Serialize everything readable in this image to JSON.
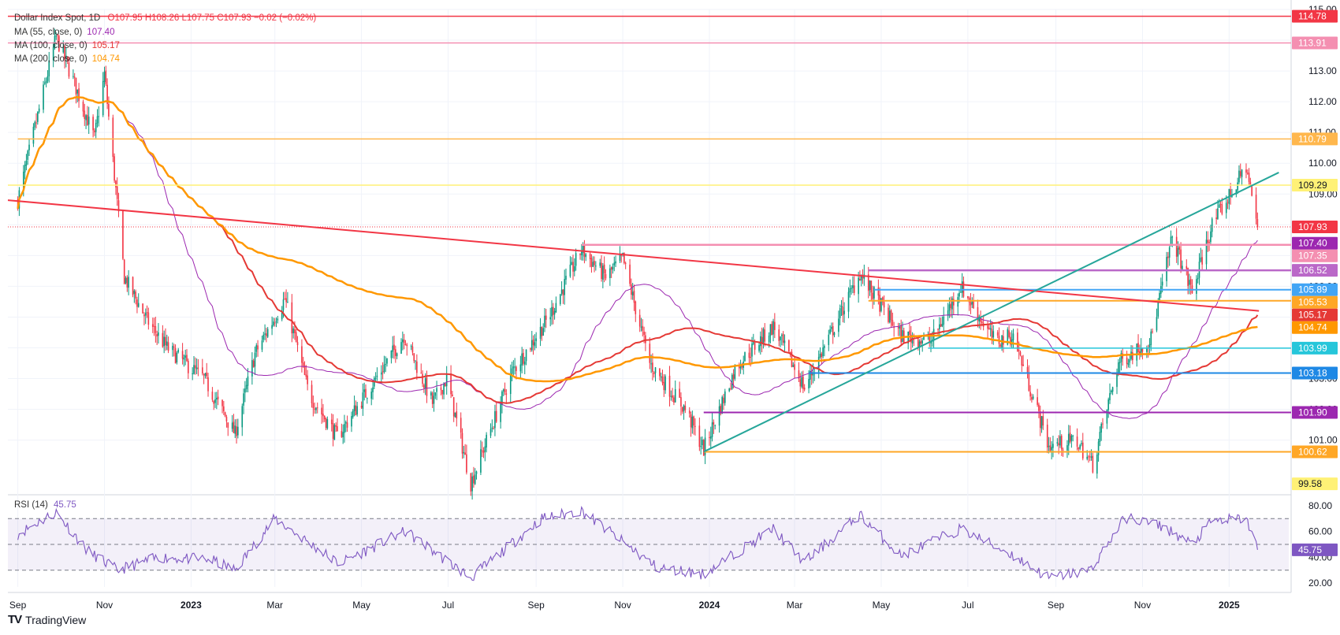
{
  "header": {
    "symbol": "Dollar Index Spot, 1D",
    "ohlc": "O107.95  H108.26  L107.75  C107.93  −0.02 (−0.02%)",
    "ma55_label": "MA (55, close, 0)",
    "ma55_value": "107.40",
    "ma100_label": "MA (100, close, 0)",
    "ma100_value": "105.17",
    "ma200_label": "MA (200, close, 0)",
    "ma200_value": "104.74"
  },
  "rsi_header": {
    "label": "RSI (14)",
    "value": "45.75"
  },
  "brand": {
    "name": "TradingView"
  },
  "colors": {
    "up": "#089981",
    "down": "#f23645",
    "ma55": "#9c27b0",
    "ma100": "#e53935",
    "ma200": "#ff9800",
    "rsi": "#7e57c2",
    "trend_green": "#26a69a"
  },
  "chart_data": [
    {
      "type": "candlestick",
      "title": "Dollar Index Spot, 1D",
      "x_axis_labels": [
        "Sep",
        "Nov",
        "2023",
        "Mar",
        "May",
        "Jul",
        "Sep",
        "Nov",
        "2024",
        "Mar",
        "May",
        "Jul",
        "Sep",
        "Nov",
        "2025"
      ],
      "y_axis_ticks": [
        101.0,
        102.0,
        103.0,
        104.0,
        105.0,
        106.0,
        107.0,
        108.0,
        109.0,
        110.0,
        111.0,
        112.0,
        113.0,
        114.0,
        115.0
      ],
      "ylim": [
        99.3,
        115.0
      ],
      "price_anchors": [
        {
          "date": "2022-09-01",
          "price": 108.8
        },
        {
          "date": "2022-09-28",
          "price": 114.1
        },
        {
          "date": "2022-10-10",
          "price": 112.7
        },
        {
          "date": "2022-10-25",
          "price": 110.8
        },
        {
          "date": "2022-11-01",
          "price": 112.9
        },
        {
          "date": "2022-11-15",
          "price": 106.3
        },
        {
          "date": "2022-12-01",
          "price": 104.9
        },
        {
          "date": "2022-12-15",
          "price": 104.0
        },
        {
          "date": "2023-01-10",
          "price": 103.0
        },
        {
          "date": "2023-02-01",
          "price": 101.2
        },
        {
          "date": "2023-02-15",
          "price": 103.8
        },
        {
          "date": "2023-03-08",
          "price": 105.6
        },
        {
          "date": "2023-03-25",
          "price": 102.5
        },
        {
          "date": "2023-04-14",
          "price": 101.1
        },
        {
          "date": "2023-05-31",
          "price": 104.4
        },
        {
          "date": "2023-06-20",
          "price": 102.2
        },
        {
          "date": "2023-06-30",
          "price": 103.0
        },
        {
          "date": "2023-07-17",
          "price": 99.6
        },
        {
          "date": "2023-08-15",
          "price": 103.2
        },
        {
          "date": "2023-09-10",
          "price": 105.0
        },
        {
          "date": "2023-10-03",
          "price": 107.2
        },
        {
          "date": "2023-10-20",
          "price": 106.3
        },
        {
          "date": "2023-11-01",
          "price": 106.9
        },
        {
          "date": "2023-11-20",
          "price": 103.5
        },
        {
          "date": "2023-12-15",
          "price": 102.0
        },
        {
          "date": "2023-12-28",
          "price": 100.7
        },
        {
          "date": "2024-01-20",
          "price": 103.4
        },
        {
          "date": "2024-02-15",
          "price": 104.7
        },
        {
          "date": "2024-03-08",
          "price": 102.7
        },
        {
          "date": "2024-04-16",
          "price": 106.4
        },
        {
          "date": "2024-05-15",
          "price": 104.4
        },
        {
          "date": "2024-06-05",
          "price": 104.2
        },
        {
          "date": "2024-06-26",
          "price": 106.0
        },
        {
          "date": "2024-07-20",
          "price": 104.2
        },
        {
          "date": "2024-08-02",
          "price": 104.4
        },
        {
          "date": "2024-08-27",
          "price": 100.8
        },
        {
          "date": "2024-09-15",
          "price": 101.0
        },
        {
          "date": "2024-09-27",
          "price": 100.2
        },
        {
          "date": "2024-10-15",
          "price": 103.5
        },
        {
          "date": "2024-11-07",
          "price": 104.3
        },
        {
          "date": "2024-11-22",
          "price": 107.6
        },
        {
          "date": "2024-12-06",
          "price": 105.8
        },
        {
          "date": "2024-12-20",
          "price": 108.0
        },
        {
          "date": "2025-01-02",
          "price": 109.0
        },
        {
          "date": "2025-01-13",
          "price": 109.9
        },
        {
          "date": "2025-01-21",
          "price": 107.93
        }
      ],
      "horizontal_levels": [
        {
          "value": 114.78,
          "label": "114.78",
          "color": "#f23645",
          "lw": 1.5,
          "from": "2022-08-25"
        },
        {
          "value": 113.91,
          "label": "113.91",
          "color": "#f48fb1",
          "lw": 1.5,
          "from": "2022-08-25"
        },
        {
          "value": 110.79,
          "label": "110.79",
          "color": "#ffb74d",
          "lw": 1.5,
          "from": "2022-09-01"
        },
        {
          "value": 109.29,
          "label": "109.29",
          "color": "#fff176",
          "lw": 1.5,
          "from": "2022-08-25",
          "text_dark": true
        },
        {
          "value": 107.35,
          "label": "107.35",
          "color": "#f48fb1",
          "lw": 2.5,
          "from": "2023-10-03"
        },
        {
          "value": 106.52,
          "label": "106.52",
          "color": "#ba68c8",
          "lw": 2.5,
          "from": "2024-04-22"
        },
        {
          "value": 105.89,
          "label": "105.89",
          "color": "#42a5f5",
          "lw": 2,
          "from": "2024-04-26"
        },
        {
          "value": 105.53,
          "label": "105.53",
          "color": "#ffa726",
          "lw": 2,
          "from": "2024-04-22"
        },
        {
          "value": 103.99,
          "label": "103.99",
          "color": "#26c6da",
          "lw": 1.5,
          "from": "2024-06-03"
        },
        {
          "value": 103.18,
          "label": "103.18",
          "color": "#1e88e5",
          "lw": 2,
          "from": "2024-03-11"
        },
        {
          "value": 101.9,
          "label": "101.90",
          "color": "#9c27b0",
          "lw": 2,
          "from": "2023-12-28"
        },
        {
          "value": 100.62,
          "label": "100.62",
          "color": "#ffa726",
          "lw": 2,
          "from": "2023-12-28"
        }
      ],
      "current_price": {
        "value": 107.93,
        "label": "107.93",
        "color": "#f23645"
      },
      "extra_price_labels": [
        {
          "value": 107.4,
          "label": "107.40",
          "color": "#9c27b0"
        },
        {
          "value": 105.17,
          "label": "105.17",
          "color": "#e53935"
        },
        {
          "value": 104.74,
          "label": "104.74",
          "color": "#ff9800"
        },
        {
          "value": 99.58,
          "label": "99.58",
          "color": "#fff176",
          "text_dark": true
        }
      ],
      "trend_lines": [
        {
          "name": "descending",
          "color": "#f23645",
          "from": {
            "date": "2022-08-25",
            "price": 108.8
          },
          "to": {
            "date": "2025-01-22",
            "price": 105.2
          }
        },
        {
          "name": "ascending",
          "color": "#26a69a",
          "from": {
            "date": "2023-12-28",
            "price": 100.62
          },
          "to": {
            "date": "2025-02-05",
            "price": 109.7
          }
        }
      ],
      "moving_averages": [
        {
          "name": "MA 55",
          "period": 55,
          "color": "#9c27b0",
          "last": 107.4
        },
        {
          "name": "MA 100",
          "period": 100,
          "color": "#e53935",
          "last": 105.17
        },
        {
          "name": "MA 200",
          "period": 200,
          "color": "#ff9800",
          "last": 104.74
        }
      ]
    },
    {
      "type": "line",
      "title": "RSI (14)",
      "y_axis_ticks": [
        20.0,
        40.0,
        60.0,
        80.0
      ],
      "ylim": [
        17,
        86
      ],
      "reference_lines": [
        70,
        50,
        30
      ],
      "last": 45.75,
      "rsi_anchors": [
        {
          "date": "2022-09-01",
          "v": 58
        },
        {
          "date": "2022-09-28",
          "v": 75
        },
        {
          "date": "2022-10-20",
          "v": 45
        },
        {
          "date": "2022-11-10",
          "v": 30
        },
        {
          "date": "2022-12-10",
          "v": 40
        },
        {
          "date": "2023-01-15",
          "v": 38
        },
        {
          "date": "2023-02-01",
          "v": 30
        },
        {
          "date": "2023-03-01",
          "v": 70
        },
        {
          "date": "2023-04-15",
          "v": 35
        },
        {
          "date": "2023-06-01",
          "v": 60
        },
        {
          "date": "2023-07-17",
          "v": 24
        },
        {
          "date": "2023-09-05",
          "v": 70
        },
        {
          "date": "2023-10-03",
          "v": 76
        },
        {
          "date": "2023-11-25",
          "v": 32
        },
        {
          "date": "2023-12-28",
          "v": 27
        },
        {
          "date": "2024-02-15",
          "v": 62
        },
        {
          "date": "2024-03-08",
          "v": 36
        },
        {
          "date": "2024-04-16",
          "v": 73
        },
        {
          "date": "2024-05-15",
          "v": 41
        },
        {
          "date": "2024-06-26",
          "v": 62
        },
        {
          "date": "2024-08-01",
          "v": 42
        },
        {
          "date": "2024-08-27",
          "v": 24
        },
        {
          "date": "2024-09-25",
          "v": 30
        },
        {
          "date": "2024-10-20",
          "v": 71
        },
        {
          "date": "2024-11-15",
          "v": 64
        },
        {
          "date": "2024-12-06",
          "v": 50
        },
        {
          "date": "2024-12-20",
          "v": 68
        },
        {
          "date": "2025-01-13",
          "v": 70
        },
        {
          "date": "2025-01-21",
          "v": 45.75
        }
      ]
    }
  ]
}
